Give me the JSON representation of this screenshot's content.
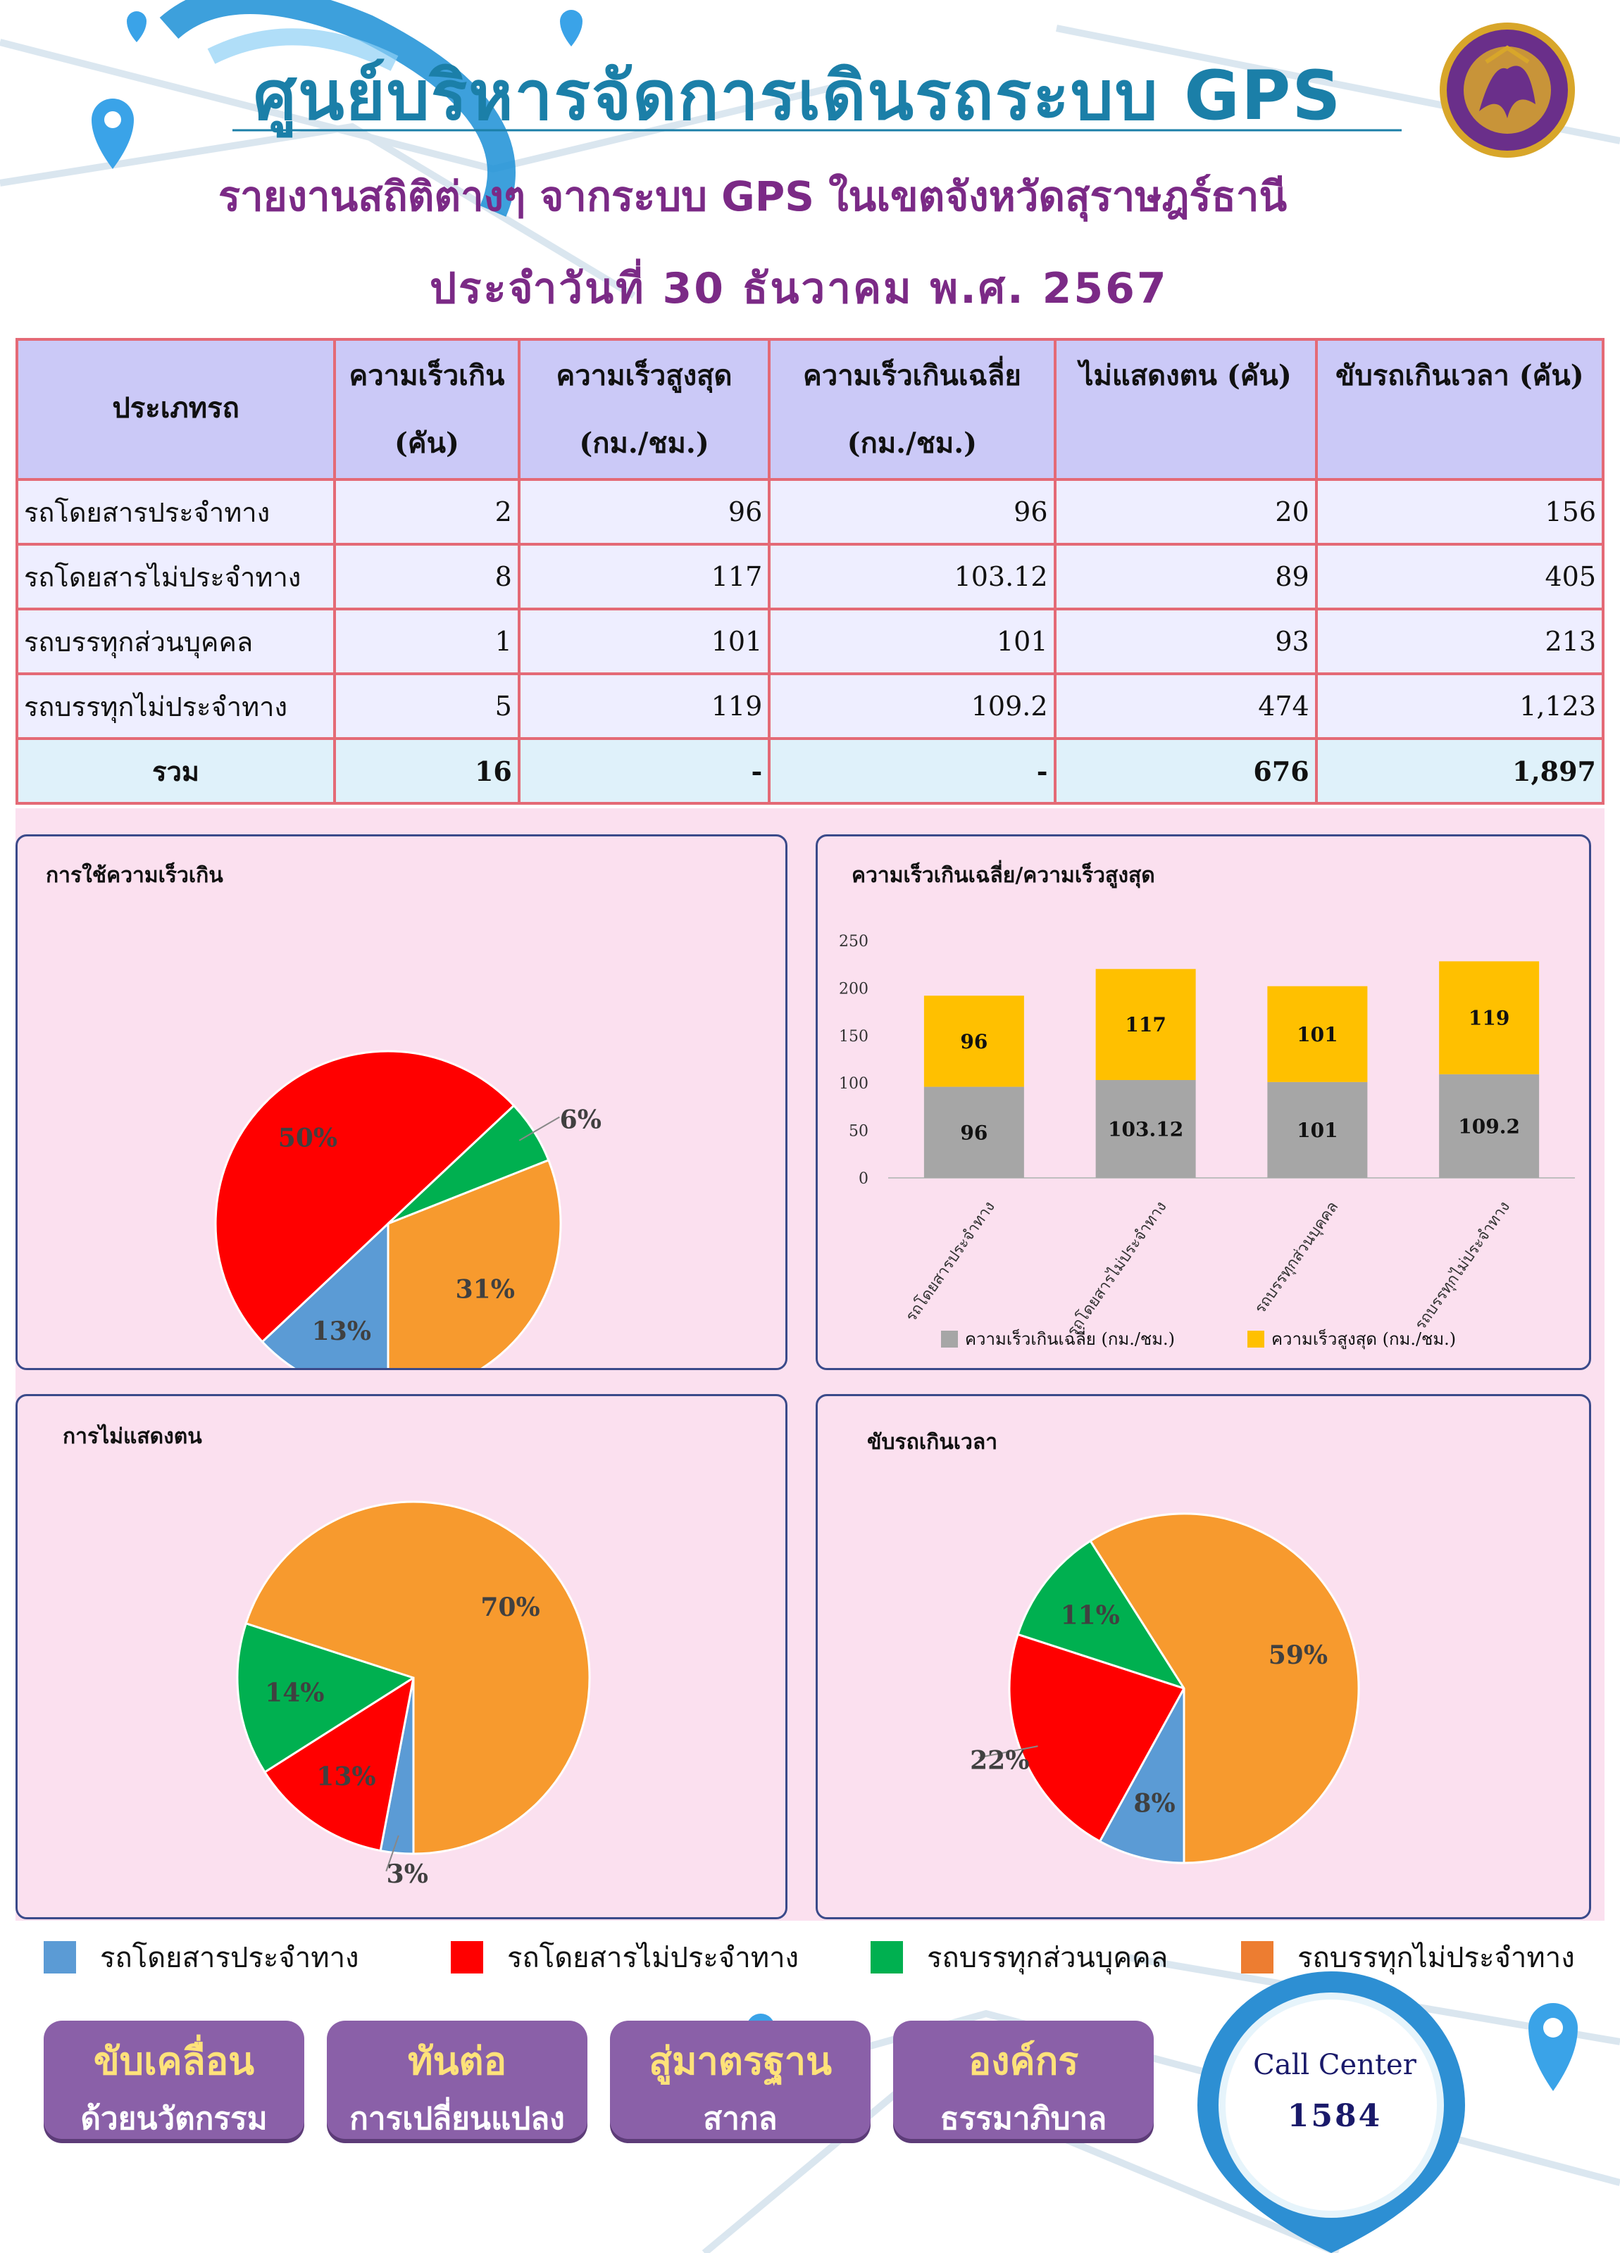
{
  "header": {
    "title": "ศูนย์บริหารจัดการเดินรถระบบ GPS",
    "subtitle": "รายงานสถิติต่างๆ จากระบบ GPS ในเขตจังหวัดสุราษฎร์ธานี",
    "date_line": "ประจำวันที่  30  ธันวาคม  พ.ศ. 2567"
  },
  "table": {
    "headers": {
      "type": "ประเภทรถ",
      "speeding_l1": "ความเร็วเกิน",
      "speeding_l2": "(คัน)",
      "max_l1": "ความเร็วสูงสุด",
      "max_l2": "(กม./ชม.)",
      "avg_l1": "ความเร็วเกินเฉลี่ย",
      "avg_l2": "(กม./ชม.)",
      "unident": "ไม่แสดงตน (คัน)",
      "overtime": "ขับรถเกินเวลา (คัน)"
    },
    "rows": [
      {
        "type": "รถโดยสารประจำทาง",
        "speeding": "2",
        "max": "96",
        "avg": "96",
        "unident": "20",
        "overtime": "156"
      },
      {
        "type": "รถโดยสารไม่ประจำทาง",
        "speeding": "8",
        "max": "117",
        "avg": "103.12",
        "unident": "89",
        "overtime": "405"
      },
      {
        "type": "รถบรรทุกส่วนบุคคล",
        "speeding": "1",
        "max": "101",
        "avg": "101",
        "unident": "93",
        "overtime": "213"
      },
      {
        "type": "รถบรรทุกไม่ประจำทาง",
        "speeding": "5",
        "max": "119",
        "avg": "109.2",
        "unident": "474",
        "overtime": "1,123"
      }
    ],
    "total": {
      "type": "รวม",
      "speeding": "16",
      "max": "-",
      "avg": "-",
      "unident": "676",
      "overtime": "1,897"
    }
  },
  "colors": {
    "blue": "#5b9bd5",
    "red": "#ff0000",
    "green": "#00b050",
    "orange": "#f79a2e",
    "gray": "#a6a6a6",
    "gold": "#ffc000"
  },
  "chart_data": [
    {
      "type": "pie",
      "title": "การใช้ความเร็วเกิน",
      "categories": [
        "รถโดยสารประจำทาง",
        "รถโดยสารไม่ประจำทาง",
        "รถบรรทุกส่วนบุคคล",
        "รถบรรทุกไม่ประจำทาง"
      ],
      "values": [
        13,
        50,
        6,
        31
      ],
      "labels": [
        "13%",
        "50%",
        "6%",
        "31%"
      ]
    },
    {
      "type": "bar",
      "title": "ความเร็วเกินเฉลี่ย/ความเร็วสูงสุด",
      "stacked": true,
      "categories": [
        "รถโดยสารประจำทาง",
        "รถโดยสารไม่ประจำทาง",
        "รถบรรทุกส่วนบุคคล",
        "รถบรรทุกไม่ประจำทาง"
      ],
      "series": [
        {
          "name": "ความเร็วเกินเฉลี่ย (กม./ชม.)",
          "values": [
            96,
            103.12,
            101,
            109.2
          ]
        },
        {
          "name": "ความเร็วสูงสุด (กม./ชม.)",
          "values": [
            96,
            117,
            101,
            119
          ]
        }
      ],
      "ylim": [
        0,
        250
      ],
      "yticks": [
        0,
        50,
        100,
        150,
        200,
        250
      ],
      "legend": "bottom"
    },
    {
      "type": "pie",
      "title": "การไม่แสดงตน",
      "categories": [
        "รถโดยสารประจำทาง",
        "รถโดยสารไม่ประจำทาง",
        "รถบรรทุกส่วนบุคคล",
        "รถบรรทุกไม่ประจำทาง"
      ],
      "values": [
        3,
        13,
        14,
        70
      ],
      "labels": [
        "3%",
        "13%",
        "14%",
        "70%"
      ]
    },
    {
      "type": "pie",
      "title": "ขับรถเกินเวลา",
      "categories": [
        "รถโดยสารประจำทาง",
        "รถโดยสารไม่ประจำทาง",
        "รถบรรทุกส่วนบุคคล",
        "รถบรรทุกไม่ประจำทาง"
      ],
      "values": [
        8,
        22,
        11,
        59
      ],
      "labels": [
        "8%",
        "22%",
        "11%",
        "59%"
      ]
    }
  ],
  "legend": [
    "รถโดยสารประจำทาง",
    "รถโดยสารไม่ประจำทาง",
    "รถบรรทุกส่วนบุคคล",
    "รถบรรทุกไม่ประจำทาง"
  ],
  "buttons": [
    {
      "a": "ขับเคลื่อน",
      "b": "ด้วยนวัตกรรม"
    },
    {
      "a": "ทันต่อ",
      "b": "การเปลี่ยนแปลง"
    },
    {
      "a": "สู่มาตรฐาน",
      "b": "สากล"
    },
    {
      "a": "องค์กร",
      "b": "ธรรมาภิบาล"
    }
  ],
  "call_center": {
    "label": "Call Center",
    "number": "1584"
  }
}
